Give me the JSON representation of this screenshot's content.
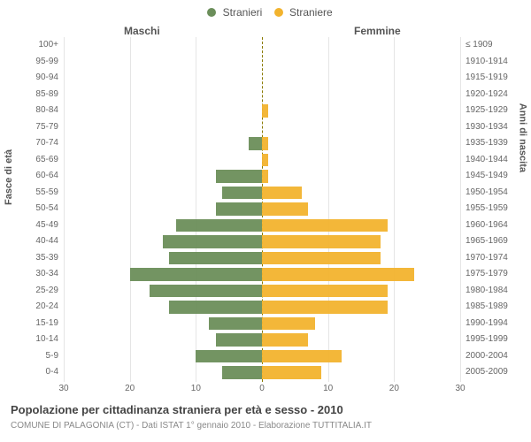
{
  "chart": {
    "type": "population-pyramid",
    "legend": {
      "male": {
        "label": "Stranieri",
        "color": "#6b8e5a"
      },
      "female": {
        "label": "Straniere",
        "color": "#f2b32e"
      }
    },
    "column_headers": {
      "male": "Maschi",
      "female": "Femmine"
    },
    "y_title_left": "Fasce di età",
    "y_title_right": "Anni di nascita",
    "x_axis": {
      "max_abs": 30,
      "ticks": [
        30,
        20,
        10,
        0,
        10,
        20,
        30
      ]
    },
    "age_bands": [
      "0-4",
      "5-9",
      "10-14",
      "15-19",
      "20-24",
      "25-29",
      "30-34",
      "35-39",
      "40-44",
      "45-49",
      "50-54",
      "55-59",
      "60-64",
      "65-69",
      "70-74",
      "75-79",
      "80-84",
      "85-89",
      "90-94",
      "95-99",
      "100+"
    ],
    "birth_years": [
      "2005-2009",
      "2000-2004",
      "1995-1999",
      "1990-1994",
      "1985-1989",
      "1980-1984",
      "1975-1979",
      "1970-1974",
      "1965-1969",
      "1960-1964",
      "1955-1959",
      "1950-1954",
      "1945-1949",
      "1940-1944",
      "1935-1939",
      "1930-1934",
      "1925-1929",
      "1920-1924",
      "1915-1919",
      "1910-1914",
      "≤ 1909"
    ],
    "male_values": [
      6,
      10,
      7,
      8,
      14,
      17,
      20,
      14,
      15,
      13,
      7,
      6,
      7,
      0,
      2,
      0,
      0,
      0,
      0,
      0,
      0
    ],
    "female_values": [
      9,
      12,
      7,
      8,
      19,
      19,
      23,
      18,
      18,
      19,
      7,
      6,
      1,
      1,
      1,
      0,
      1,
      0,
      0,
      0,
      0
    ],
    "colors": {
      "male_bar": "#6b8e5a",
      "female_bar": "#f2b32e",
      "grid": "#e5e5e5",
      "center": "#8a7a00",
      "background": "#ffffff"
    },
    "fontsize": {
      "axis": 10,
      "legend": 12,
      "header": 12,
      "title": 13,
      "sub": 10
    }
  },
  "footer": {
    "title": "Popolazione per cittadinanza straniera per età e sesso - 2010",
    "sub": "COMUNE DI PALAGONIA (CT) - Dati ISTAT 1° gennaio 2010 - Elaborazione TUTTITALIA.IT"
  }
}
